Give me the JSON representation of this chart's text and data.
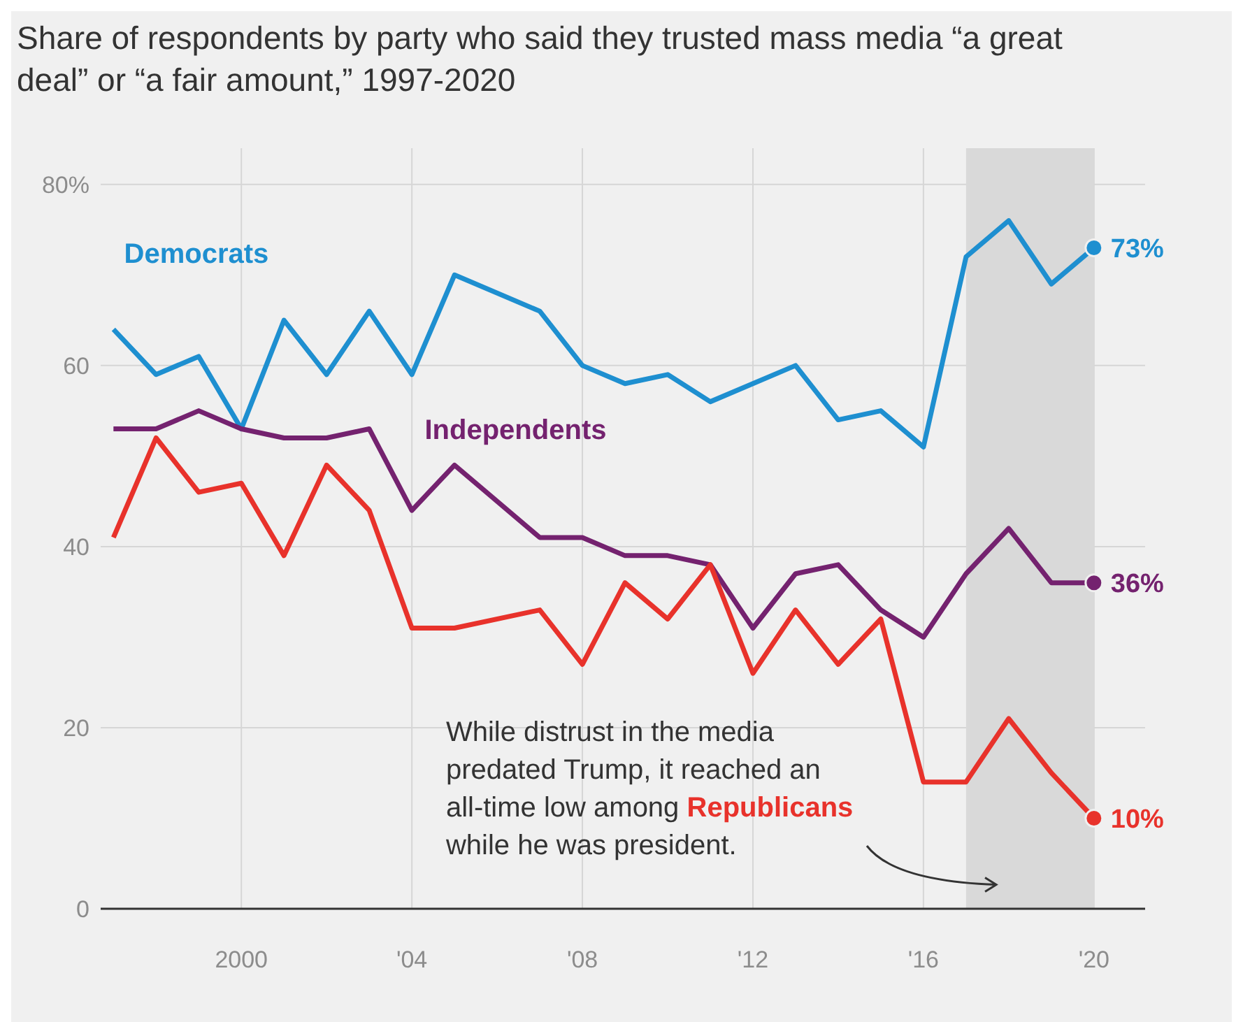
{
  "chart_data": {
    "type": "line",
    "title": "Share of respondents by party who said they trusted mass media “a great deal” or “a fair amount,” 1997-2020",
    "x": [
      1997,
      1998,
      1999,
      2000,
      2001,
      2002,
      2003,
      2004,
      2005,
      2007,
      2008,
      2009,
      2010,
      2011,
      2012,
      2013,
      2014,
      2015,
      2016,
      2017,
      2018,
      2019,
      2020
    ],
    "series": [
      {
        "name": "Democrats",
        "color": "#1e8fd0",
        "values": [
          64,
          59,
          61,
          53,
          65,
          59,
          66,
          59,
          70,
          66,
          60,
          58,
          59,
          56,
          58,
          60,
          54,
          55,
          51,
          72,
          76,
          69,
          73
        ],
        "value_labels": [
          null,
          null,
          null,
          null,
          null,
          null,
          null,
          null,
          null,
          null,
          null,
          null,
          null,
          null,
          null,
          null,
          null,
          null,
          null,
          null,
          null,
          null,
          "73%"
        ]
      },
      {
        "name": "Independents",
        "color": "#74226f",
        "values": [
          53,
          53,
          55,
          53,
          52,
          52,
          53,
          44,
          49,
          41,
          41,
          39,
          39,
          38,
          31,
          37,
          38,
          33,
          30,
          37,
          42,
          36,
          36
        ],
        "value_labels": [
          null,
          null,
          null,
          null,
          null,
          null,
          null,
          null,
          null,
          null,
          null,
          null,
          null,
          null,
          null,
          null,
          null,
          null,
          null,
          null,
          null,
          null,
          "36%"
        ]
      },
      {
        "name": "Republicans",
        "color": "#e8322b",
        "values": [
          41,
          52,
          46,
          47,
          39,
          49,
          44,
          31,
          31,
          33,
          27,
          36,
          32,
          38,
          26,
          33,
          27,
          32,
          14,
          14,
          21,
          15,
          10
        ],
        "value_labels": [
          null,
          null,
          null,
          null,
          null,
          null,
          null,
          null,
          null,
          null,
          null,
          null,
          null,
          null,
          null,
          null,
          null,
          null,
          null,
          null,
          null,
          null,
          "10%"
        ]
      }
    ],
    "xlim": [
      1996.7,
      2021.2
    ],
    "xticks": [
      2000,
      {
        "value": 2004,
        "label": "'04"
      },
      {
        "value": 2008,
        "label": "'08"
      },
      {
        "value": 2012,
        "label": "'12"
      },
      {
        "value": 2016,
        "label": "'16"
      },
      {
        "value": 2020,
        "label": "'20"
      }
    ],
    "ylim": [
      0,
      84
    ],
    "yticks": [
      0,
      20,
      40,
      60,
      {
        "value": 80,
        "label": "80%"
      }
    ],
    "grid": true,
    "marker": "none",
    "line_style": "solid",
    "bands": [
      {
        "axis": "x",
        "from": 2017,
        "to": 2020,
        "color": "#d9d9d9"
      }
    ],
    "annotations": [
      "While distrust in the media predated Trump, it reached an all-time low among",
      "while he was president."
    ]
  }
}
